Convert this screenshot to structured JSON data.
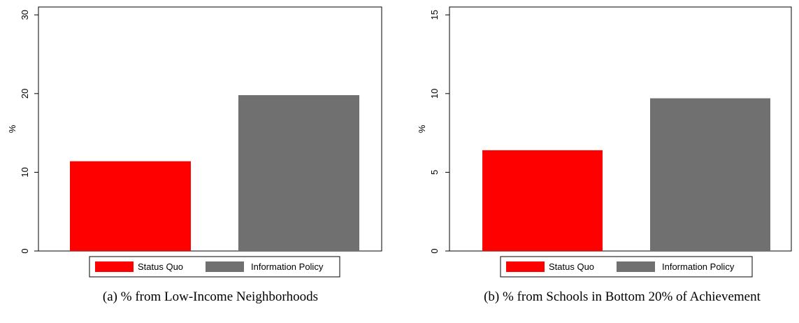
{
  "colors": {
    "status_quo": "#ff0000",
    "information_policy": "#707070"
  },
  "chart_data": [
    {
      "type": "bar",
      "caption": "(a)  % from Low-Income Neighborhoods",
      "ylabel": "%",
      "ylim": [
        0,
        31
      ],
      "yticks": [
        0,
        10,
        20,
        30
      ],
      "categories": [
        "Status Quo",
        "Information Policy"
      ],
      "values": [
        11.4,
        19.8
      ],
      "legend": [
        "Status Quo",
        "Information Policy"
      ],
      "legend_position": "bottom",
      "grid": false
    },
    {
      "type": "bar",
      "caption": "(b)  % from Schools in Bottom 20% of Achievement",
      "ylabel": "%",
      "ylim": [
        0,
        15.5
      ],
      "yticks": [
        0,
        5,
        10,
        15
      ],
      "categories": [
        "Status Quo",
        "Information Policy"
      ],
      "values": [
        6.4,
        9.7
      ],
      "legend": [
        "Status Quo",
        "Information Policy"
      ],
      "legend_position": "bottom",
      "grid": false
    }
  ]
}
